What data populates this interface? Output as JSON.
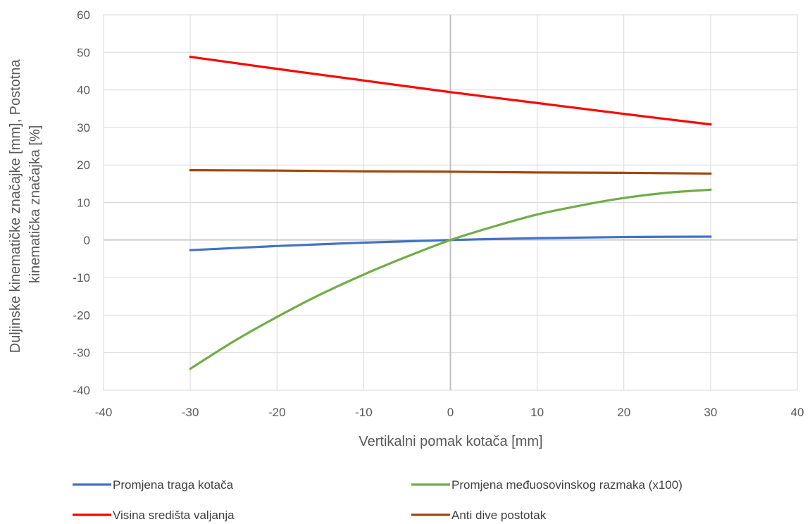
{
  "chart_data": {
    "type": "line",
    "title": "",
    "xlabel": "Vertikalni pomak kotača [mm]",
    "ylabel_lines": [
      "Duljinske kinematičke značajke [mm], Postotna",
      "kinematička značajka [%]"
    ],
    "xlim": [
      -40,
      40
    ],
    "ylim": [
      -40,
      60
    ],
    "xticks": [
      -40,
      -30,
      -20,
      -10,
      0,
      10,
      20,
      30,
      40
    ],
    "yticks": [
      -40,
      -30,
      -20,
      -10,
      0,
      10,
      20,
      30,
      40,
      50,
      60
    ],
    "grid": true,
    "legend_position": "bottom",
    "series": [
      {
        "name": "Promjena traga kotača",
        "color": "#4472c4",
        "x": [
          -30,
          -20,
          -10,
          0,
          10,
          20,
          30
        ],
        "y": [
          -2.7,
          -1.6,
          -0.7,
          0,
          0.5,
          0.8,
          0.9
        ]
      },
      {
        "name": "Promjena međuosovinskog razmaka (x100)",
        "color": "#70ad47",
        "x": [
          -30,
          -25,
          -20,
          -15,
          -10,
          -5,
          0,
          5,
          10,
          15,
          20,
          25,
          30
        ],
        "y": [
          -34.3,
          -27.0,
          -20.5,
          -14.5,
          -9.2,
          -4.4,
          0,
          3.6,
          6.8,
          9.2,
          11.2,
          12.6,
          13.4
        ]
      },
      {
        "name": "Visina središta valjanja",
        "color": "#ff0000",
        "x": [
          -30,
          -20,
          -10,
          0,
          10,
          20,
          30
        ],
        "y": [
          48.8,
          45.6,
          42.5,
          39.4,
          36.5,
          33.6,
          30.8
        ]
      },
      {
        "name": "Anti dive postotak",
        "color": "#9e480e",
        "x": [
          -30,
          -20,
          -10,
          0,
          10,
          20,
          30
        ],
        "y": [
          18.6,
          18.5,
          18.3,
          18.2,
          18.0,
          17.9,
          17.7
        ]
      }
    ]
  }
}
